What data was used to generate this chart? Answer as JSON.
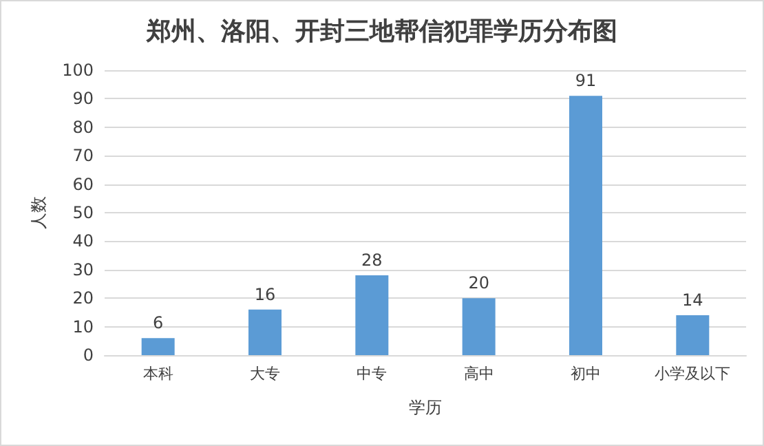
{
  "chart_data": {
    "type": "bar",
    "title": "郑州、洛阳、开封三地帮信犯罪学历分布图",
    "xlabel": "学历",
    "ylabel": "人数",
    "categories": [
      "本科",
      "大专",
      "中专",
      "高中",
      "初中",
      "小学及以下"
    ],
    "values": [
      6,
      16,
      28,
      20,
      91,
      14
    ],
    "color": "#5b9bd5",
    "ylim": [
      0,
      100
    ],
    "yticks": [
      0,
      10,
      20,
      30,
      40,
      50,
      60,
      70,
      80,
      90,
      100
    ],
    "grid": "y",
    "data_labels": true
  }
}
